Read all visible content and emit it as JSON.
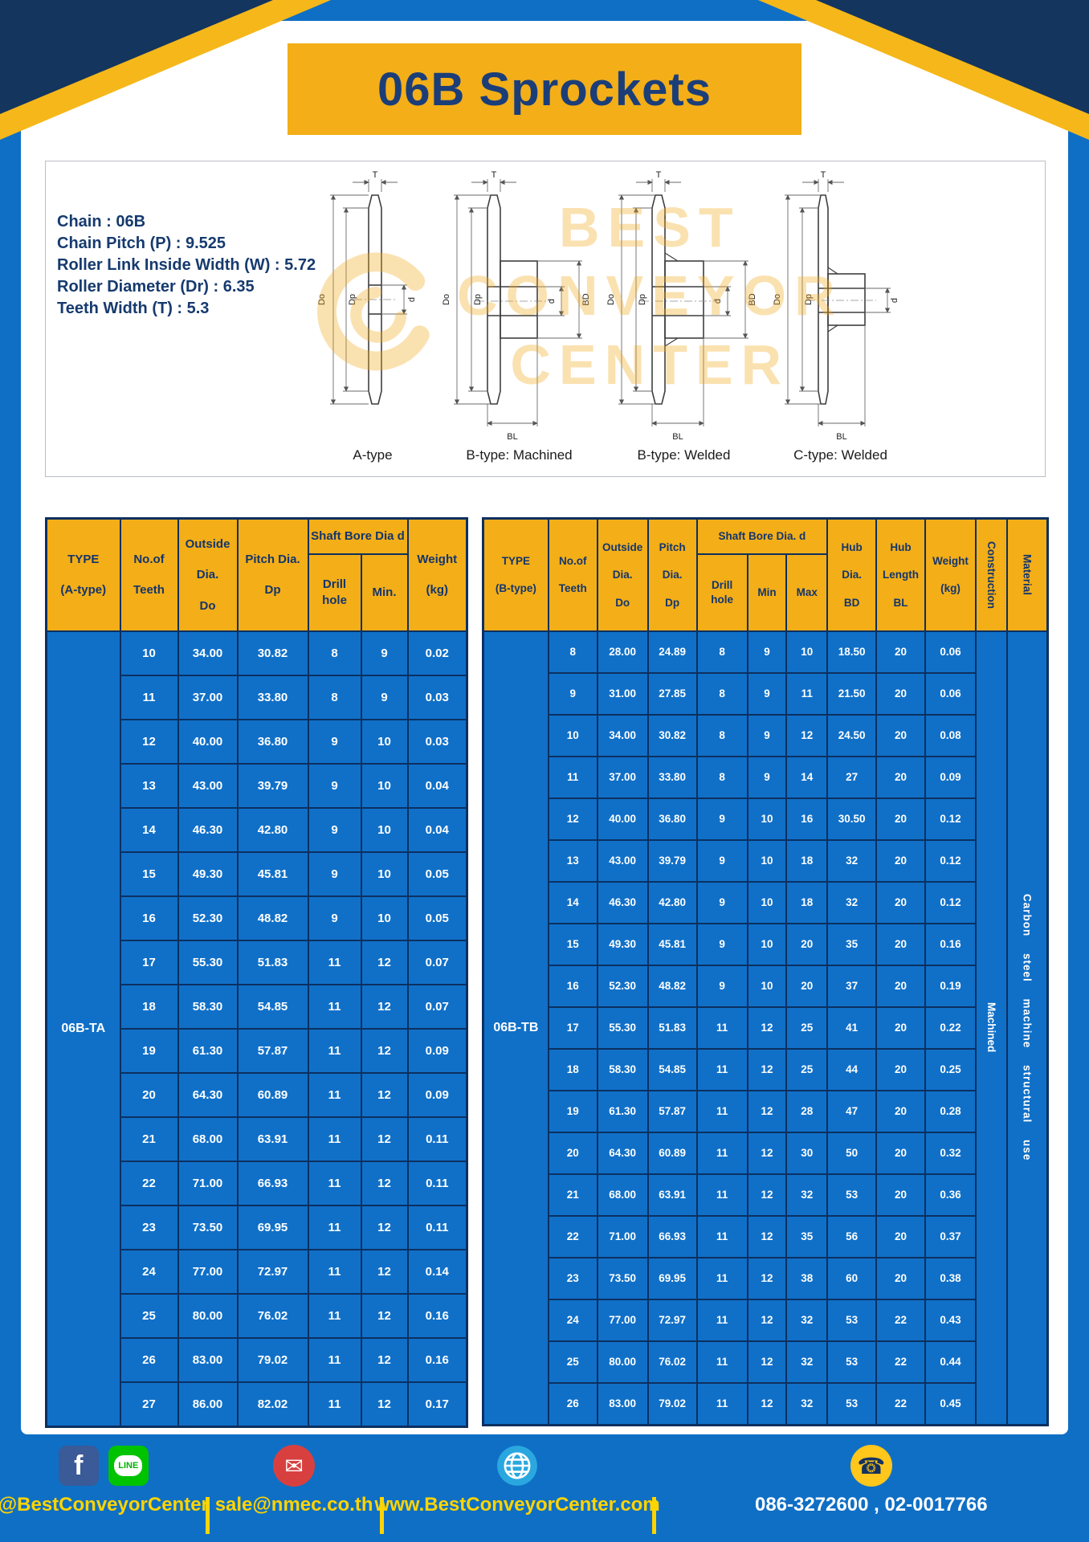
{
  "title": "06B Sprockets",
  "specs": [
    "Chain : 06B",
    "Chain Pitch (P) : 9.525",
    "Roller Link Inside Width (W) : 5.72",
    "Roller Diameter (Dr) : 6.35",
    "Teeth Width (T) : 5.3"
  ],
  "dims": {
    "t": "T",
    "do": "Do",
    "dp": "Dp",
    "d": "d",
    "bd": "BD",
    "bl": "BL"
  },
  "diagrams": {
    "captions": [
      "A-type",
      "B-type: Machined",
      "B-type: Welded",
      "C-type: Welded"
    ]
  },
  "watermark": {
    "lines": [
      "BEST",
      "CONVEYOR",
      "CENTER"
    ]
  },
  "colors": {
    "page_blue": "#0f6fc5",
    "accent_yellow": "#f3ae18",
    "navy": "#14355e",
    "footer_yellow": "#ffd400"
  },
  "table_a": {
    "headers": {
      "type": "TYPE\n\n(A-type)",
      "teeth": "No.of\n\nTeeth",
      "outside": "Outside\n\nDia.\n\nDo",
      "pitch": "Pitch Dia.\n\nDp",
      "shaft_bore": "Shaft Bore Dia d",
      "drill": "Drill hole",
      "min": "Min.",
      "weight": "Weight\n\n(kg)"
    },
    "type_value": "06B-TA",
    "rows": [
      [
        "10",
        "34.00",
        "30.82",
        "8",
        "9",
        "0.02"
      ],
      [
        "11",
        "37.00",
        "33.80",
        "8",
        "9",
        "0.03"
      ],
      [
        "12",
        "40.00",
        "36.80",
        "9",
        "10",
        "0.03"
      ],
      [
        "13",
        "43.00",
        "39.79",
        "9",
        "10",
        "0.04"
      ],
      [
        "14",
        "46.30",
        "42.80",
        "9",
        "10",
        "0.04"
      ],
      [
        "15",
        "49.30",
        "45.81",
        "9",
        "10",
        "0.05"
      ],
      [
        "16",
        "52.30",
        "48.82",
        "9",
        "10",
        "0.05"
      ],
      [
        "17",
        "55.30",
        "51.83",
        "11",
        "12",
        "0.07"
      ],
      [
        "18",
        "58.30",
        "54.85",
        "11",
        "12",
        "0.07"
      ],
      [
        "19",
        "61.30",
        "57.87",
        "11",
        "12",
        "0.09"
      ],
      [
        "20",
        "64.30",
        "60.89",
        "11",
        "12",
        "0.09"
      ],
      [
        "21",
        "68.00",
        "63.91",
        "11",
        "12",
        "0.11"
      ],
      [
        "22",
        "71.00",
        "66.93",
        "11",
        "12",
        "0.11"
      ],
      [
        "23",
        "73.50",
        "69.95",
        "11",
        "12",
        "0.11"
      ],
      [
        "24",
        "77.00",
        "72.97",
        "11",
        "12",
        "0.14"
      ],
      [
        "25",
        "80.00",
        "76.02",
        "11",
        "12",
        "0.16"
      ],
      [
        "26",
        "83.00",
        "79.02",
        "11",
        "12",
        "0.16"
      ],
      [
        "27",
        "86.00",
        "82.02",
        "11",
        "12",
        "0.17"
      ]
    ]
  },
  "table_b": {
    "headers": {
      "type": "TYPE\n\n(B-type)",
      "teeth": "No.of\n\nTeeth",
      "outside": "Outside\n\nDia.\n\nDo",
      "pitch": "Pitch\n\nDia.\n\nDp",
      "shaft_bore": "Shaft Bore Dia. d",
      "drill": "Drill hole",
      "min": "Min",
      "max": "Max",
      "hub_dia": "Hub\n\nDia.\n\nBD",
      "hub_len": "Hub\n\nLength\n\nBL",
      "weight": "Weight\n\n(kg)",
      "construction": "Construction",
      "material": "Material"
    },
    "type_value": "06B-TB",
    "construction_value": "Machined",
    "material_value": "Carbon steel machine structural use",
    "rows": [
      [
        "8",
        "28.00",
        "24.89",
        "8",
        "9",
        "10",
        "18.50",
        "20",
        "0.06"
      ],
      [
        "9",
        "31.00",
        "27.85",
        "8",
        "9",
        "11",
        "21.50",
        "20",
        "0.06"
      ],
      [
        "10",
        "34.00",
        "30.82",
        "8",
        "9",
        "12",
        "24.50",
        "20",
        "0.08"
      ],
      [
        "11",
        "37.00",
        "33.80",
        "8",
        "9",
        "14",
        "27",
        "20",
        "0.09"
      ],
      [
        "12",
        "40.00",
        "36.80",
        "9",
        "10",
        "16",
        "30.50",
        "20",
        "0.12"
      ],
      [
        "13",
        "43.00",
        "39.79",
        "9",
        "10",
        "18",
        "32",
        "20",
        "0.12"
      ],
      [
        "14",
        "46.30",
        "42.80",
        "9",
        "10",
        "18",
        "32",
        "20",
        "0.12"
      ],
      [
        "15",
        "49.30",
        "45.81",
        "9",
        "10",
        "20",
        "35",
        "20",
        "0.16"
      ],
      [
        "16",
        "52.30",
        "48.82",
        "9",
        "10",
        "20",
        "37",
        "20",
        "0.19"
      ],
      [
        "17",
        "55.30",
        "51.83",
        "11",
        "12",
        "25",
        "41",
        "20",
        "0.22"
      ],
      [
        "18",
        "58.30",
        "54.85",
        "11",
        "12",
        "25",
        "44",
        "20",
        "0.25"
      ],
      [
        "19",
        "61.30",
        "57.87",
        "11",
        "12",
        "28",
        "47",
        "20",
        "0.28"
      ],
      [
        "20",
        "64.30",
        "60.89",
        "11",
        "12",
        "30",
        "50",
        "20",
        "0.32"
      ],
      [
        "21",
        "68.00",
        "63.91",
        "11",
        "12",
        "32",
        "53",
        "20",
        "0.36"
      ],
      [
        "22",
        "71.00",
        "66.93",
        "11",
        "12",
        "35",
        "56",
        "20",
        "0.37"
      ],
      [
        "23",
        "73.50",
        "69.95",
        "11",
        "12",
        "38",
        "60",
        "20",
        "0.38"
      ],
      [
        "24",
        "77.00",
        "72.97",
        "11",
        "12",
        "32",
        "53",
        "22",
        "0.43"
      ],
      [
        "25",
        "80.00",
        "76.02",
        "11",
        "12",
        "32",
        "53",
        "22",
        "0.44"
      ],
      [
        "26",
        "83.00",
        "79.02",
        "11",
        "12",
        "32",
        "53",
        "22",
        "0.45"
      ]
    ]
  },
  "footer": {
    "social": "@BestConveyorCenter",
    "email": "sale@nmec.co.th",
    "website": "www.BestConveyorCenter.com",
    "phones": "086-3272600 , 02-0017766",
    "icons": {
      "facebook": "f",
      "line": "LINE",
      "email": "✉",
      "phone": "☎"
    }
  }
}
